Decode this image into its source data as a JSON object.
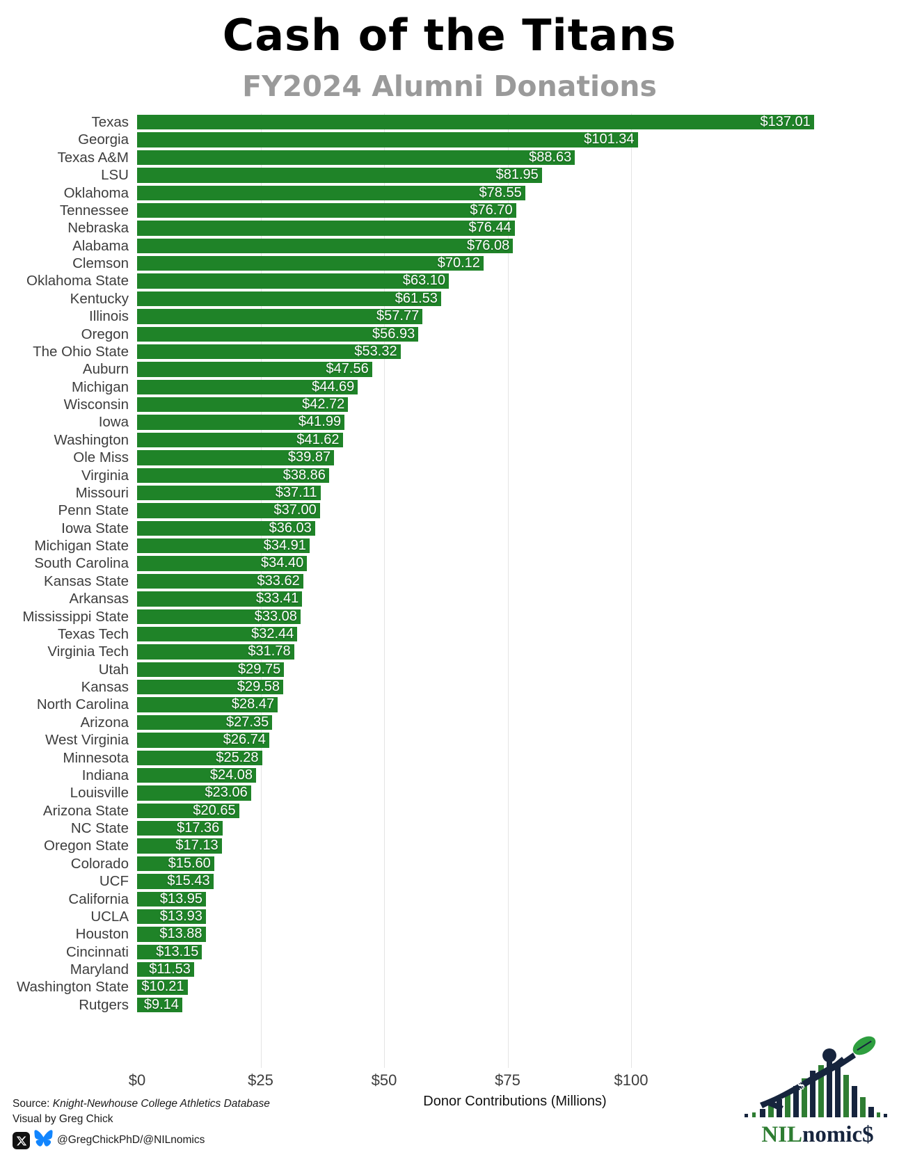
{
  "header": {
    "title": "Cash of the Titans",
    "subtitle": "FY2024 Alumni Donations"
  },
  "chart_data": {
    "type": "bar",
    "orientation": "horizontal",
    "title": "Cash of the Titans",
    "subtitle": "FY2024 Alumni Donations",
    "xlabel": "Donor Contributions (Millions)",
    "xlim": [
      0,
      140
    ],
    "grid": true,
    "legend": false,
    "bar_color": "#1f8328",
    "value_prefix": "$",
    "x_ticks": [
      {
        "value": 0,
        "label": "$0"
      },
      {
        "value": 25,
        "label": "$25"
      },
      {
        "value": 50,
        "label": "$50"
      },
      {
        "value": 75,
        "label": "$75"
      },
      {
        "value": 100,
        "label": "$100"
      }
    ],
    "categories": [
      "Texas",
      "Georgia",
      "Texas A&M",
      "LSU",
      "Oklahoma",
      "Tennessee",
      "Nebraska",
      "Alabama",
      "Clemson",
      "Oklahoma State",
      "Kentucky",
      "Illinois",
      "Oregon",
      "The Ohio State",
      "Auburn",
      "Michigan",
      "Wisconsin",
      "Iowa",
      "Washington",
      "Ole Miss",
      "Virginia",
      "Missouri",
      "Penn State",
      "Iowa State",
      "Michigan State",
      "South Carolina",
      "Kansas State",
      "Arkansas",
      "Mississippi State",
      "Texas Tech",
      "Virginia Tech",
      "Utah",
      "Kansas",
      "North Carolina",
      "Arizona",
      "West Virginia",
      "Minnesota",
      "Indiana",
      "Louisville",
      "Arizona State",
      "NC State",
      "Oregon State",
      "Colorado",
      "UCF",
      "California",
      "UCLA",
      "Houston",
      "Cincinnati",
      "Maryland",
      "Washington State",
      "Rutgers"
    ],
    "values": [
      137.01,
      101.34,
      88.63,
      81.95,
      78.55,
      76.7,
      76.44,
      76.08,
      70.12,
      63.1,
      61.53,
      57.77,
      56.93,
      53.32,
      47.56,
      44.69,
      42.72,
      41.99,
      41.62,
      39.87,
      38.86,
      37.11,
      37.0,
      36.03,
      34.91,
      34.4,
      33.62,
      33.41,
      33.08,
      32.44,
      31.78,
      29.75,
      29.58,
      28.47,
      27.35,
      26.74,
      25.28,
      24.08,
      23.06,
      20.65,
      17.36,
      17.13,
      15.6,
      15.43,
      13.95,
      13.93,
      13.88,
      13.15,
      11.53,
      10.21,
      9.14
    ]
  },
  "footer": {
    "source_prefix": "Source: ",
    "source_name": "Knight-Newhouse College Athletics Database",
    "credit": "Visual by Greg Chick",
    "handles": "@GregChickPhD/@NILnomics"
  },
  "logo": {
    "text_nil": "NIL",
    "text_nomic": "nomic",
    "text_dollar": "$",
    "green": "#2e7d32",
    "navy": "#16243d"
  },
  "colors": {
    "bar_green": "#1f8328",
    "gridline": "#e4e4e4",
    "label_gray": "#3d3d3d",
    "subtitle_gray": "#9a9a9a",
    "bluesky_blue": "#1185fe",
    "x_black": "#111111"
  }
}
